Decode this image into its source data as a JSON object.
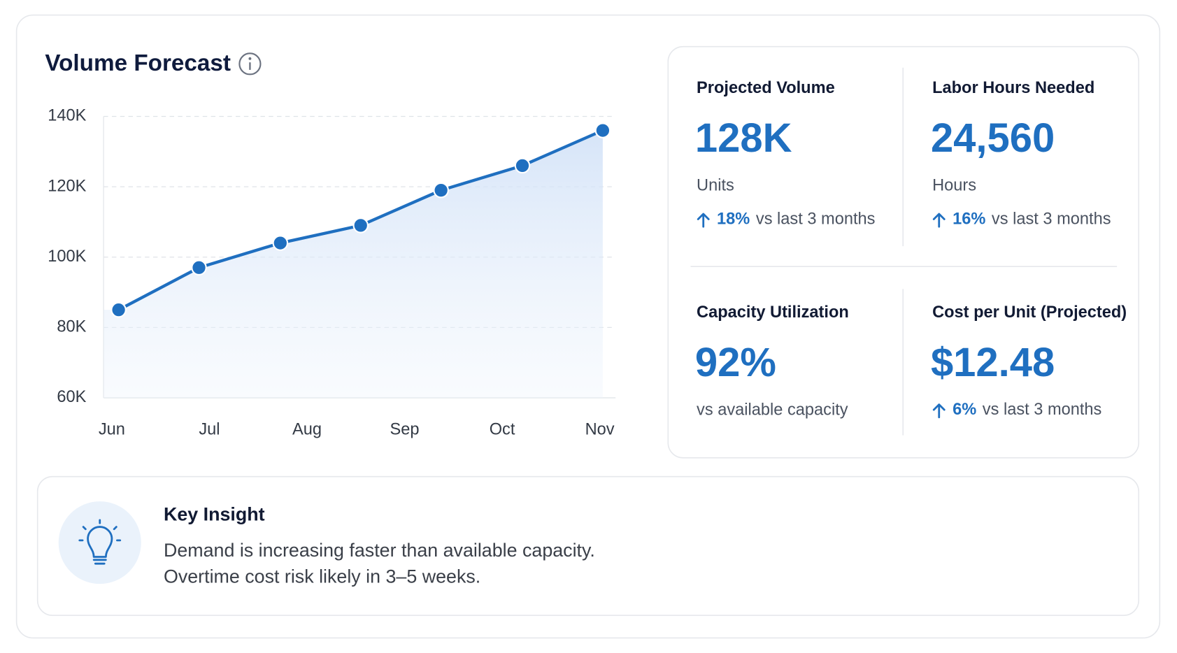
{
  "chart_data": {
    "type": "line",
    "title": "Volume Forecast",
    "x": [
      0,
      0.83,
      1.67,
      2.5,
      3.33,
      4.17,
      5
    ],
    "series": [
      {
        "name": "Projected Volume",
        "color": "#1f6fc0",
        "values": [
          85000,
          97000,
          104000,
          109000,
          119000,
          126000,
          136000
        ]
      }
    ],
    "xlim": [
      0,
      5
    ],
    "xticks": [
      {
        "value": 0,
        "label": "Jun"
      },
      {
        "value": 1,
        "label": "Jul"
      },
      {
        "value": 2,
        "label": "Aug"
      },
      {
        "value": 3,
        "label": "Sep"
      },
      {
        "value": 4,
        "label": "Oct"
      },
      {
        "value": 5,
        "label": "Nov"
      }
    ],
    "ylim": [
      60000,
      140000
    ],
    "yticks": [
      {
        "value": 60000,
        "label": "60K"
      },
      {
        "value": 80000,
        "label": "80K"
      },
      {
        "value": 100000,
        "label": "100K"
      },
      {
        "value": 120000,
        "label": "120K"
      },
      {
        "value": 140000,
        "label": "140K"
      }
    ],
    "grid": true
  },
  "kpis": [
    {
      "label": "Projected Volume",
      "value": "128K",
      "unit": "Units",
      "change": "18%",
      "change_note": "vs last 3 months"
    },
    {
      "label": "Labor Hours Needed",
      "value": "24,560",
      "unit": "Hours",
      "change": "16%",
      "change_note": "vs last 3 months"
    },
    {
      "label": "Capacity Utilization",
      "value": "92%",
      "unit": "vs available capacity"
    },
    {
      "label": "Cost per Unit (Projected)",
      "value": "$12.48",
      "change": "6%",
      "change_note": "vs last 3 months"
    }
  ],
  "insight": {
    "title": "Key Insight",
    "lines": [
      "Demand is increasing faster than available capacity.",
      "Overtime cost risk likely in 3–5 weeks."
    ]
  }
}
